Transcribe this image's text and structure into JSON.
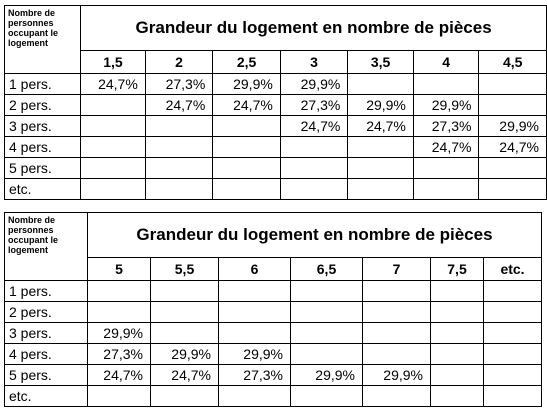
{
  "corner_label": "Nombre de personnes occupant le logement",
  "table1": {
    "title": "Grandeur du logement en nombre de pièces",
    "columns": [
      "1,5",
      "2",
      "2,5",
      "3",
      "3,5",
      "4",
      "4,5"
    ],
    "rows": [
      {
        "label": "1 pers.",
        "cells": [
          "24,7%",
          "27,3%",
          "29,9%",
          "29,9%",
          "",
          "",
          ""
        ]
      },
      {
        "label": "2 pers.",
        "cells": [
          "",
          "24,7%",
          "24,7%",
          "27,3%",
          "29,9%",
          "29,9%",
          ""
        ]
      },
      {
        "label": "3 pers.",
        "cells": [
          "",
          "",
          "",
          "24,7%",
          "24,7%",
          "27,3%",
          "29,9%"
        ]
      },
      {
        "label": "4 pers.",
        "cells": [
          "",
          "",
          "",
          "",
          "",
          "24,7%",
          "24,7%"
        ]
      },
      {
        "label": "5 pers.",
        "cells": [
          "",
          "",
          "",
          "",
          "",
          "",
          ""
        ]
      },
      {
        "label": "etc.",
        "cells": [
          "",
          "",
          "",
          "",
          "",
          "",
          ""
        ]
      }
    ]
  },
  "table2": {
    "title": "Grandeur du logement en nombre de pièces",
    "columns": [
      "5",
      "5,5",
      "6",
      "6,5",
      "7",
      "7,5",
      "etc."
    ],
    "rows": [
      {
        "label": "1 pers.",
        "cells": [
          "",
          "",
          "",
          "",
          "",
          "",
          ""
        ]
      },
      {
        "label": "2 pers.",
        "cells": [
          "",
          "",
          "",
          "",
          "",
          "",
          ""
        ]
      },
      {
        "label": "3 pers.",
        "cells": [
          "29,9%",
          "",
          "",
          "",
          "",
          "",
          ""
        ]
      },
      {
        "label": "4 pers.",
        "cells": [
          "27,3%",
          "29,9%",
          "29,9%",
          "",
          "",
          "",
          ""
        ]
      },
      {
        "label": "5 pers.",
        "cells": [
          "24,7%",
          "24,7%",
          "27,3%",
          "29,9%",
          "29,9%",
          "",
          ""
        ]
      },
      {
        "label": "etc.",
        "cells": [
          "",
          "",
          "",
          "",
          "",
          "",
          ""
        ]
      }
    ]
  }
}
